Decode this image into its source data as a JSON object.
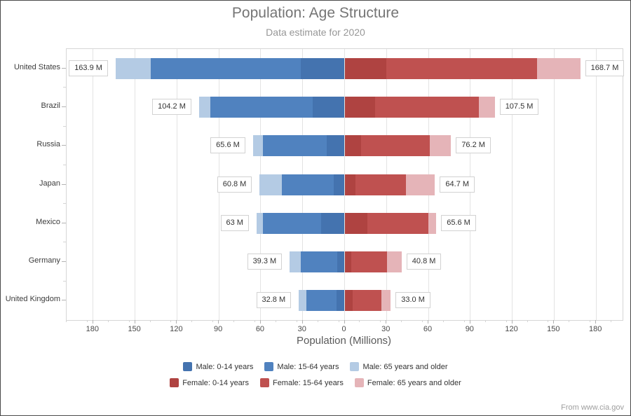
{
  "header": {
    "title": "Population: Age Structure",
    "subtitle": "Data estimate for 2020"
  },
  "chart_data": {
    "type": "bar",
    "orientation": "horizontal-diverging-stacked",
    "categories": [
      "United States",
      "Brazil",
      "Russia",
      "Japan",
      "Mexico",
      "Germany",
      "United Kingdom"
    ],
    "series": [
      {
        "name": "Male: 0-14 years",
        "side": "left",
        "color": "#4473af",
        "values": [
          31.4,
          22.8,
          12.6,
          8.0,
          16.6,
          5.3,
          5.9
        ]
      },
      {
        "name": "Male: 15-64 years",
        "side": "left",
        "color": "#5082bf",
        "values": [
          107.5,
          73.1,
          46.0,
          36.7,
          41.7,
          25.9,
          21.4
        ]
      },
      {
        "name": "Male: 65 years and older",
        "side": "left",
        "color": "#b4cbe4",
        "values": [
          25.0,
          8.3,
          7.0,
          16.1,
          4.7,
          8.1,
          5.5
        ]
      },
      {
        "name": "Female: 0-14 years",
        "side": "right",
        "color": "#af4341",
        "values": [
          30.0,
          21.9,
          11.9,
          7.6,
          16.3,
          5.0,
          5.7
        ]
      },
      {
        "name": "Female: 15-64 years",
        "side": "right",
        "color": "#bf5150",
        "values": [
          107.7,
          74.4,
          49.3,
          36.5,
          43.9,
          25.5,
          20.6
        ]
      },
      {
        "name": "Female: 65 years and older",
        "side": "right",
        "color": "#e5b4b8",
        "values": [
          31.0,
          11.2,
          15.0,
          20.6,
          5.4,
          10.3,
          6.7
        ]
      }
    ],
    "totals_left": [
      "163.9 M",
      "104.2 M",
      "65.6 M",
      "60.8 M",
      "63 M",
      "39.3 M",
      "32.8 M"
    ],
    "totals_right": [
      "168.7 M",
      "107.5 M",
      "76.2 M",
      "64.7 M",
      "65.6 M",
      "40.8 M",
      "33.0 M"
    ],
    "xlabel": "Population (Millions)",
    "x_ticks": [
      180,
      150,
      120,
      90,
      60,
      30,
      0,
      30,
      60,
      90,
      120,
      150,
      180
    ],
    "x_tick_step": 30,
    "x_minor_step": 15,
    "axis_max": 199,
    "grid": true,
    "legend_position": "bottom",
    "legend_rows": [
      [
        0,
        1,
        2
      ],
      [
        3,
        4,
        5
      ]
    ]
  },
  "footer": {
    "source": "From www.cia.gov"
  }
}
